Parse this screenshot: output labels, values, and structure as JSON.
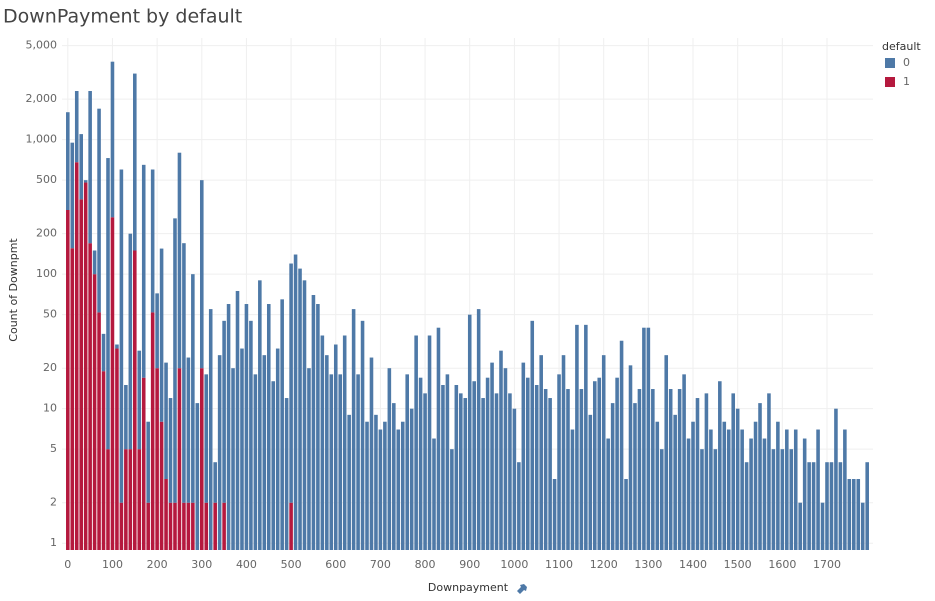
{
  "chart_data": {
    "type": "stacked-bar",
    "title": "DownPayment by default",
    "x_label": "Downpayment",
    "y_label": "Count of Downpmt",
    "legend_title": "default",
    "legend_position": "top-right",
    "y_scale": "log",
    "grid": true,
    "xlim": [
      -13,
      1803
    ],
    "xticks": [
      0,
      100,
      200,
      300,
      400,
      500,
      600,
      700,
      800,
      900,
      1000,
      1100,
      1200,
      1300,
      1400,
      1500,
      1600,
      1700
    ],
    "ylim": [
      0.89,
      5700
    ],
    "yticks": [
      1,
      2,
      5,
      10,
      20,
      50,
      100,
      200,
      500,
      {
        "value": 1000,
        "label": "1,000"
      },
      {
        "value": 2000,
        "label": "2,000"
      },
      {
        "value": 5000,
        "label": "5,000"
      }
    ],
    "x": [
      0,
      10,
      20,
      30,
      40,
      50,
      60,
      70,
      80,
      90,
      100,
      110,
      120,
      130,
      140,
      150,
      160,
      170,
      180,
      190,
      200,
      210,
      220,
      230,
      240,
      250,
      260,
      270,
      280,
      290,
      300,
      310,
      320,
      330,
      340,
      350,
      360,
      370,
      380,
      390,
      400,
      410,
      420,
      430,
      440,
      450,
      460,
      470,
      480,
      490,
      500,
      510,
      520,
      530,
      540,
      550,
      560,
      570,
      580,
      590,
      600,
      610,
      620,
      630,
      640,
      650,
      660,
      670,
      680,
      690,
      700,
      710,
      720,
      730,
      740,
      750,
      760,
      770,
      780,
      790,
      800,
      810,
      820,
      830,
      840,
      850,
      860,
      870,
      880,
      890,
      900,
      910,
      920,
      930,
      940,
      950,
      960,
      970,
      980,
      990,
      1000,
      1010,
      1020,
      1030,
      1040,
      1050,
      1060,
      1070,
      1080,
      1090,
      1100,
      1110,
      1120,
      1130,
      1140,
      1150,
      1160,
      1170,
      1180,
      1190,
      1200,
      1210,
      1220,
      1230,
      1240,
      1250,
      1260,
      1270,
      1280,
      1290,
      1300,
      1310,
      1320,
      1330,
      1340,
      1350,
      1360,
      1370,
      1380,
      1390,
      1400,
      1410,
      1420,
      1430,
      1440,
      1450,
      1460,
      1470,
      1480,
      1490,
      1500,
      1510,
      1520,
      1530,
      1540,
      1550,
      1560,
      1570,
      1580,
      1590,
      1600,
      1610,
      1620,
      1630,
      1640,
      1650,
      1660,
      1670,
      1680,
      1690,
      1700,
      1710,
      1720,
      1730,
      1740,
      1750,
      1760,
      1770,
      1780,
      1790
    ],
    "series": [
      {
        "name": "0",
        "color": "#4e79a7",
        "values": [
          1300,
          794,
          1620,
          740,
          20,
          2130,
          50,
          1648,
          17,
          725,
          3535,
          2,
          598,
          10,
          195,
          2950,
          22,
          633,
          6,
          548,
          52,
          147,
          19,
          10,
          258,
          780,
          168,
          22,
          98,
          11,
          480,
          16,
          55,
          2,
          25,
          43,
          60,
          20,
          75,
          28,
          60,
          45,
          18,
          90,
          25,
          60,
          16,
          28,
          65,
          12,
          118,
          140,
          110,
          90,
          20,
          70,
          60,
          35,
          25,
          18,
          30,
          18,
          35,
          9,
          55,
          18,
          45,
          8,
          24,
          9,
          7,
          8,
          20,
          11,
          7,
          8,
          18,
          10,
          35,
          17,
          13,
          35,
          6,
          40,
          15,
          18,
          5,
          15,
          13,
          12,
          50,
          16,
          55,
          12,
          17,
          22,
          13,
          27,
          20,
          13,
          10,
          4,
          22,
          17,
          45,
          15,
          25,
          14,
          12,
          3,
          18,
          25,
          14,
          7,
          42,
          14,
          42,
          9,
          16,
          17,
          25,
          6,
          11,
          17,
          32,
          3,
          21,
          11,
          14,
          40,
          40,
          14,
          8,
          5,
          25,
          14,
          9,
          14,
          18,
          6,
          8,
          12,
          5,
          13,
          7,
          5,
          16,
          8,
          7,
          13,
          10,
          7,
          4,
          6,
          8,
          11,
          6,
          13,
          5,
          8,
          5,
          7,
          5,
          7,
          2,
          6,
          4,
          4,
          7,
          2,
          4,
          4,
          10,
          4,
          7,
          3,
          3,
          3,
          2,
          4
        ]
      },
      {
        "name": "1",
        "color": "#b5193e",
        "values": [
          300,
          156,
          680,
          360,
          480,
          170,
          100,
          52,
          19,
          5,
          265,
          28,
          2,
          5,
          5,
          150,
          5,
          17,
          2,
          52,
          20,
          8,
          3,
          2,
          2,
          20,
          2,
          2,
          2,
          null,
          20,
          2,
          null,
          2,
          null,
          2,
          null,
          null,
          null,
          null,
          null,
          null,
          null,
          null,
          null,
          null,
          null,
          null,
          null,
          null,
          2,
          null,
          null,
          null,
          null,
          null,
          null,
          null,
          null,
          null,
          null,
          null,
          null,
          null,
          null,
          null,
          null,
          null,
          null,
          null,
          null,
          null,
          null,
          null,
          null,
          null,
          null,
          null,
          null,
          null,
          null,
          null,
          null,
          null,
          null,
          null,
          null,
          null,
          null,
          null,
          null,
          null,
          null,
          null,
          null,
          null,
          null,
          null,
          null,
          null,
          null,
          null,
          null,
          null,
          null,
          null,
          null,
          null,
          null,
          null,
          null,
          null,
          null,
          null,
          null,
          null,
          null,
          null,
          null,
          null,
          null,
          null,
          null,
          null,
          null,
          null,
          null,
          null,
          null,
          null,
          null,
          null,
          null,
          null,
          null,
          null,
          null,
          null,
          null,
          null,
          null,
          null,
          null,
          null,
          null,
          null,
          null,
          null,
          null,
          null,
          null,
          null,
          null,
          null,
          null,
          null,
          null,
          null,
          null,
          null,
          null,
          null,
          null,
          null,
          null,
          null,
          null,
          null,
          null,
          null,
          null,
          null,
          null,
          null,
          null,
          null,
          null,
          null,
          null,
          null
        ]
      }
    ]
  }
}
